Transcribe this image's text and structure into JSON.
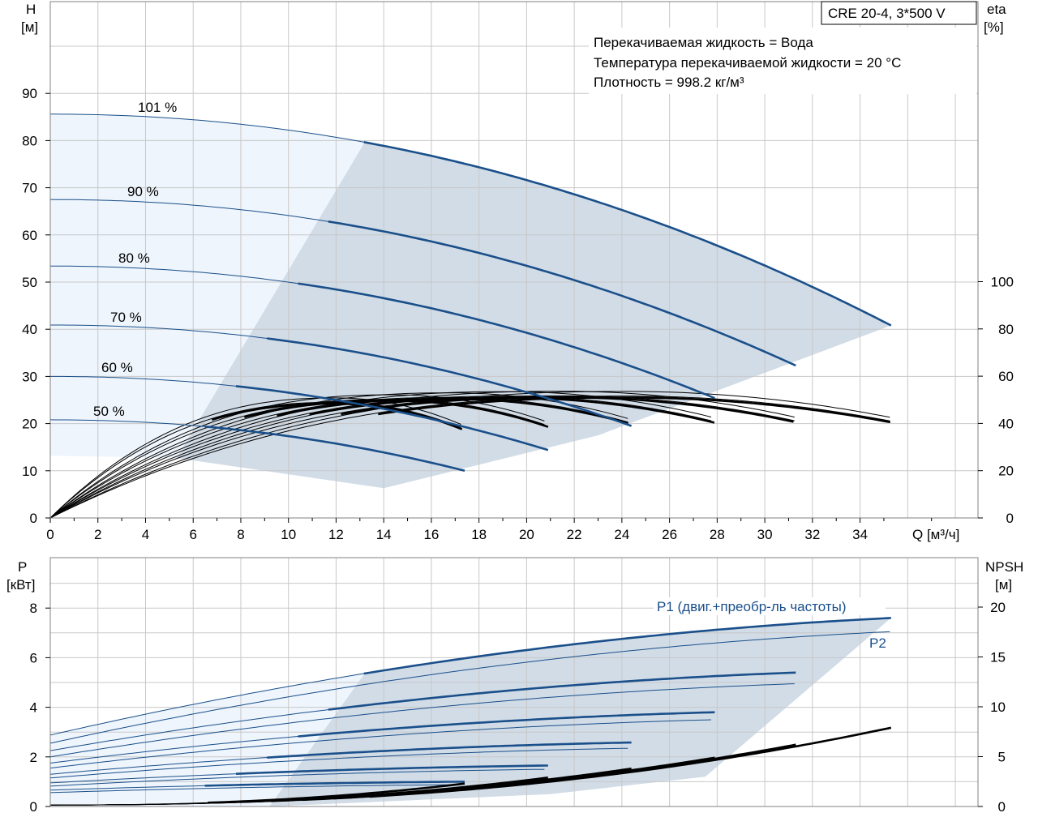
{
  "model_label": "CRE 20-4, 3*500 V",
  "info_lines": [
    "Перекачиваемая жидкость = Вода",
    "Температура перекачиваемой жидкости = 20 °C",
    "Плотность = 998.2 кг/м³"
  ],
  "colors": {
    "blue": "#1a4f8a",
    "fill_light": "#eef5fc",
    "fill_dark": "#d1dce7",
    "grid": "#c8c8c8",
    "black": "#000000"
  },
  "chart_data": [
    {
      "type": "line",
      "x_label": "Q [м³/ч]",
      "y_label_left": [
        "H",
        "[м]"
      ],
      "y_label_right": [
        "eta",
        "[%]"
      ],
      "x_ticks": [
        0,
        2,
        4,
        6,
        8,
        10,
        12,
        14,
        16,
        18,
        20,
        22,
        24,
        26,
        28,
        30,
        32,
        34
      ],
      "y_ticks_left": [
        0,
        10,
        20,
        30,
        40,
        50,
        60,
        70,
        80,
        90
      ],
      "y_ticks_right": [
        0,
        20,
        40,
        60,
        80,
        100
      ],
      "xlim": [
        0,
        38.5
      ],
      "ylim": [
        0,
        108
      ],
      "eta_ylim": [
        0,
        100
      ],
      "grid": true,
      "speed_labels": [
        "101 %",
        "90 %",
        "80 %",
        "70 %",
        "60 %",
        "50 %"
      ],
      "head_curves": [
        {
          "speed": 101,
          "q_max": 35.3,
          "h0": 85.6,
          "h_end": 40.8
        },
        {
          "speed": 90,
          "q_max": 31.3,
          "h0": 67.5,
          "h_end": 32.3
        },
        {
          "speed": 80,
          "q_max": 27.9,
          "h0": 53.4,
          "h_end": 25.4
        },
        {
          "speed": 70,
          "q_max": 24.4,
          "h0": 40.9,
          "h_end": 19.5
        },
        {
          "speed": 60,
          "q_max": 20.9,
          "h0": 30.0,
          "h_end": 14.4
        },
        {
          "speed": 50,
          "q_max": 17.4,
          "h0": 20.8,
          "h_end": 10.0
        }
      ],
      "efficiency_curves": [
        {
          "q_max": 35.3,
          "eta_peak": 64.5,
          "q_peak": 24.2,
          "eta_end": 51.2
        },
        {
          "q_max": 31.3,
          "eta_peak": 64.6,
          "q_peak": 21.5,
          "eta_end": 51.3
        },
        {
          "q_max": 27.9,
          "eta_peak": 64.4,
          "q_peak": 19.2,
          "eta_end": 51.0
        },
        {
          "q_max": 24.4,
          "eta_peak": 63.8,
          "q_peak": 16.8,
          "eta_end": 50.2
        },
        {
          "q_max": 20.9,
          "eta_peak": 62.8,
          "q_peak": 14.4,
          "eta_end": 48.8
        },
        {
          "q_max": 17.4,
          "eta_peak": 61.2,
          "q_peak": 12.0,
          "eta_end": 46.9
        }
      ]
    },
    {
      "type": "line",
      "x_label": "Q [м³/ч]",
      "y_label_left": [
        "P",
        "[кВт]"
      ],
      "y_label_right": [
        "NPSH",
        "[м]"
      ],
      "y_ticks_left": [
        0,
        2,
        4,
        6,
        8
      ],
      "y_ticks_right": [
        0,
        5,
        10,
        15,
        20
      ],
      "ylim": [
        0,
        9.4
      ],
      "npsh_ylim": [
        0,
        23.5
      ],
      "grid": true,
      "series_labels": [
        "P1 (двиг.+преобр-ль частоты)",
        "P2"
      ],
      "power_curves": [
        {
          "q_max": 35.3,
          "p1_0": 2.88,
          "p1_end": 7.6,
          "p2_0": 2.55,
          "p2_end": 7.05
        },
        {
          "q_max": 31.3,
          "p1_0": 2.25,
          "p1_end": 5.4,
          "p2_0": 2.0,
          "p2_end": 4.95
        },
        {
          "q_max": 27.9,
          "p1_0": 1.75,
          "p1_end": 3.8,
          "p2_0": 1.55,
          "p2_end": 3.5
        },
        {
          "q_max": 24.4,
          "p1_0": 1.3,
          "p1_end": 2.58,
          "p2_0": 1.15,
          "p2_end": 2.35
        },
        {
          "q_max": 20.9,
          "p1_0": 0.95,
          "p1_end": 1.65,
          "p2_0": 0.82,
          "p2_end": 1.5
        },
        {
          "q_max": 17.4,
          "p1_0": 0.66,
          "p1_end": 1.0,
          "p2_0": 0.56,
          "p2_end": 0.88
        }
      ],
      "npsh_curves": [
        {
          "q_max": 35.3,
          "npsh_end": 7.9
        },
        {
          "q_max": 31.3,
          "npsh_end": 6.2
        },
        {
          "q_max": 27.9,
          "npsh_end": 4.9
        },
        {
          "q_max": 24.4,
          "npsh_end": 3.8
        },
        {
          "q_max": 20.9,
          "npsh_end": 2.9
        },
        {
          "q_max": 17.4,
          "npsh_end": 2.3
        }
      ]
    }
  ]
}
